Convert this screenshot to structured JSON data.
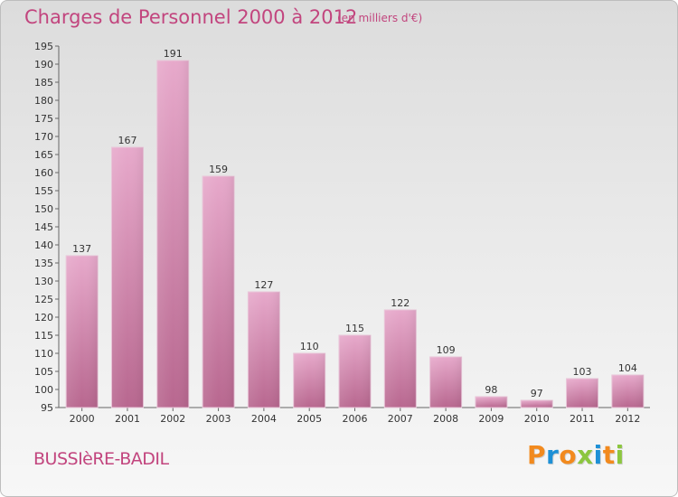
{
  "chart_data": {
    "type": "bar",
    "title": "Charges de Personnel 2000 à 2012",
    "subtitle": "(en milliers d'€)",
    "xlabel": "",
    "ylabel": "",
    "categories": [
      "2000",
      "2001",
      "2002",
      "2003",
      "2004",
      "2005",
      "2006",
      "2007",
      "2008",
      "2009",
      "2010",
      "2011",
      "2012"
    ],
    "values": [
      137,
      167,
      191,
      159,
      127,
      110,
      115,
      122,
      109,
      98,
      97,
      103,
      104
    ],
    "ylim": [
      95,
      195
    ],
    "ytick_step": 5,
    "grid": false,
    "legend": "none",
    "bar_color": "#d68bb3"
  },
  "footer": {
    "place": "BUSSIèRE-BADIL",
    "logo_letters": [
      "P",
      "r",
      "o",
      "x",
      "i",
      "t",
      "i"
    ],
    "logo_colors": [
      "#f28a1e",
      "#1e90d6",
      "#f28a1e",
      "#8cc63f",
      "#1e90d6",
      "#f28a1e",
      "#8cc63f"
    ]
  },
  "colors": {
    "accent": "#c2457e"
  }
}
